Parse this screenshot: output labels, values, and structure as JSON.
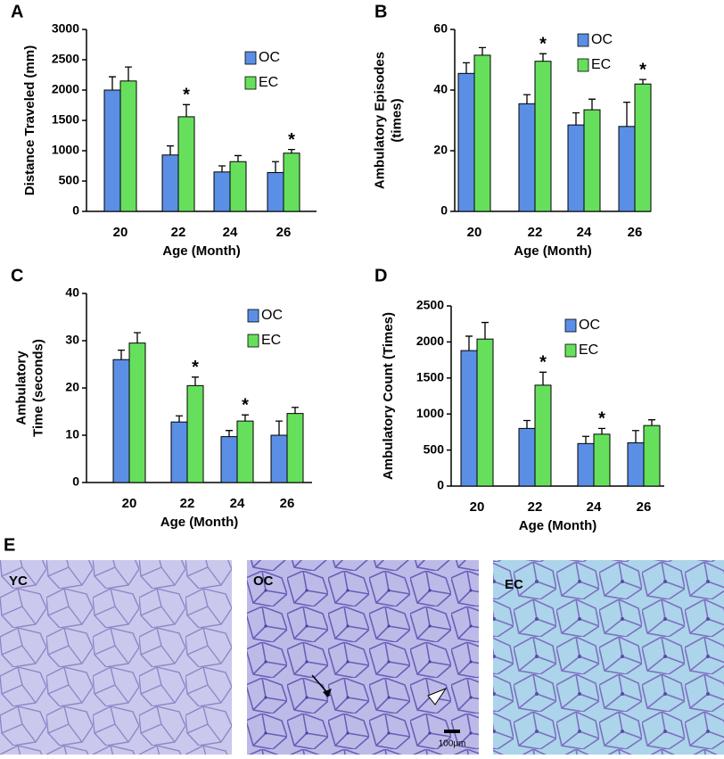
{
  "chart_data": [
    {
      "type": "bar",
      "panel_label": "A",
      "y_label": [
        "Distance Traveled (mm)"
      ],
      "x_label": "Age (Month)",
      "categories": [
        "20",
        "22",
        "24",
        "26"
      ],
      "ylim": [
        0,
        3000
      ],
      "yticks": [
        0,
        500,
        1000,
        1500,
        2000,
        2500,
        3000
      ],
      "series": [
        {
          "name": "OC",
          "color": "#5b8fe6",
          "values": [
            2000,
            930,
            650,
            640
          ],
          "errors": [
            220,
            150,
            100,
            180
          ],
          "significance": [
            null,
            null,
            null,
            null
          ]
        },
        {
          "name": "EC",
          "color": "#66e05c",
          "values": [
            2150,
            1560,
            820,
            960
          ],
          "errors": [
            230,
            200,
            100,
            60
          ],
          "significance": [
            null,
            "*",
            null,
            "*"
          ]
        }
      ]
    },
    {
      "type": "bar",
      "panel_label": "B",
      "y_label": [
        "Ambulatory Episodes",
        "(times)"
      ],
      "x_label": "Age (Month)",
      "categories": [
        "20",
        "22",
        "24",
        "26"
      ],
      "ylim": [
        0,
        60
      ],
      "yticks": [
        0,
        20,
        40,
        60
      ],
      "series": [
        {
          "name": "OC",
          "color": "#5b8fe6",
          "values": [
            45.5,
            35.5,
            28.5,
            28
          ],
          "errors": [
            3.5,
            3,
            4,
            8
          ],
          "significance": [
            null,
            null,
            null,
            null
          ]
        },
        {
          "name": "EC",
          "color": "#66e05c",
          "values": [
            51.5,
            49.5,
            33.5,
            42
          ],
          "errors": [
            2.5,
            2.5,
            3.5,
            1.5
          ],
          "significance": [
            null,
            "*",
            null,
            "*"
          ]
        }
      ]
    },
    {
      "type": "bar",
      "panel_label": "C",
      "y_label": [
        "Ambulatory",
        "Time (seconds)"
      ],
      "x_label": "Age (Month)",
      "categories": [
        "20",
        "22",
        "24",
        "26"
      ],
      "ylim": [
        0,
        40
      ],
      "yticks": [
        0,
        10,
        20,
        30,
        40
      ],
      "series": [
        {
          "name": "OC",
          "color": "#5b8fe6",
          "values": [
            26,
            12.8,
            9.7,
            10
          ],
          "errors": [
            2,
            1.3,
            1.3,
            3
          ],
          "significance": [
            null,
            null,
            null,
            null
          ]
        },
        {
          "name": "EC",
          "color": "#66e05c",
          "values": [
            29.5,
            20.5,
            13,
            14.6
          ],
          "errors": [
            2.2,
            1.8,
            1.3,
            1.3
          ],
          "significance": [
            null,
            "*",
            "*",
            null
          ]
        }
      ]
    },
    {
      "type": "bar",
      "panel_label": "D",
      "y_label": [
        "Ambulatory Count (Times)"
      ],
      "x_label": "Age (Month)",
      "categories": [
        "20",
        "22",
        "24",
        "26"
      ],
      "ylim": [
        0,
        2500
      ],
      "yticks": [
        0,
        500,
        1000,
        1500,
        2000,
        2500
      ],
      "series": [
        {
          "name": "OC",
          "color": "#5b8fe6",
          "values": [
            1880,
            800,
            590,
            600
          ],
          "errors": [
            200,
            110,
            100,
            170
          ],
          "significance": [
            null,
            null,
            null,
            null
          ]
        },
        {
          "name": "EC",
          "color": "#66e05c",
          "values": [
            2040,
            1400,
            720,
            840
          ],
          "errors": [
            230,
            180,
            80,
            80
          ],
          "significance": [
            null,
            "*",
            "*",
            null
          ]
        }
      ]
    }
  ],
  "histology": {
    "panel_label": "E",
    "images": [
      {
        "label": "YC"
      },
      {
        "label": "OC"
      },
      {
        "label": "EC"
      }
    ],
    "scale_bar": "100μm"
  }
}
